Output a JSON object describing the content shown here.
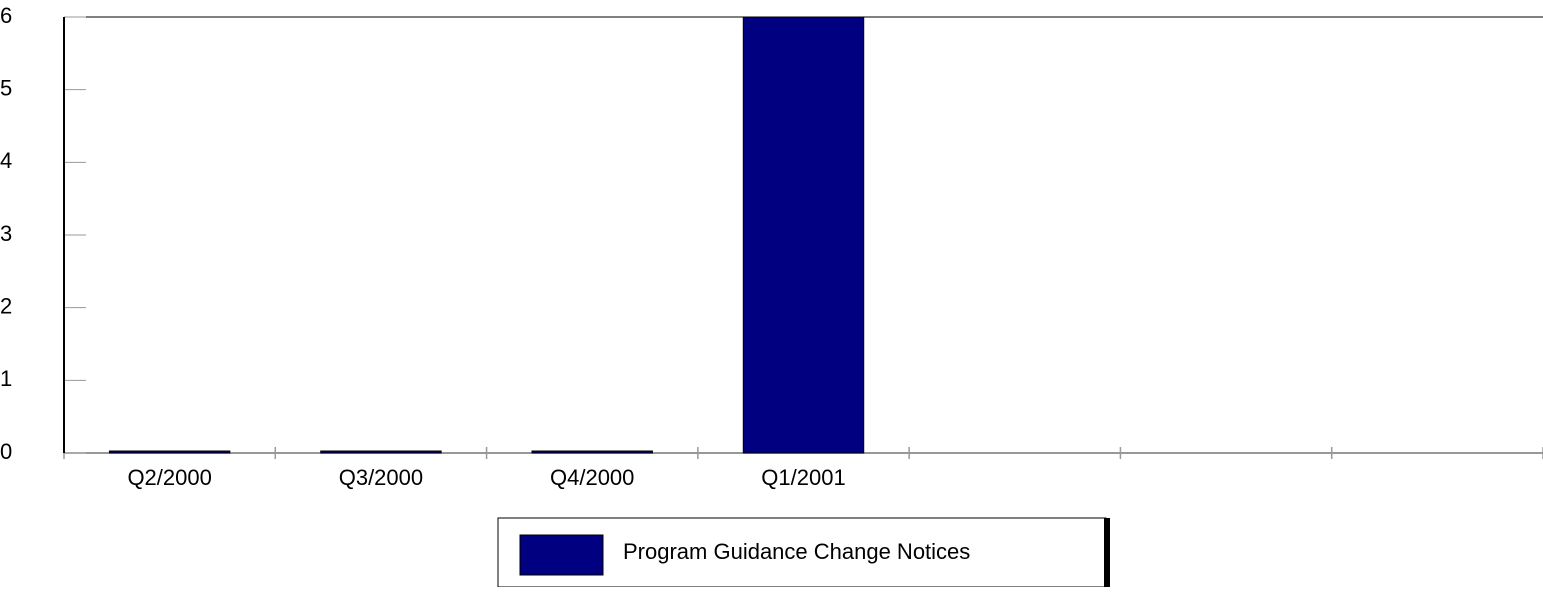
{
  "chart_data": {
    "type": "bar",
    "categories": [
      "Q2/2000",
      "Q3/2000",
      "Q4/2000",
      "Q1/2001",
      null,
      null,
      null
    ],
    "series": [
      {
        "name": "Program Guidance Change Notices",
        "color": "#000080",
        "values": [
          0,
          0,
          0,
          6,
          null,
          null,
          null
        ]
      }
    ],
    "ylim": [
      0,
      6
    ],
    "yticks": [
      0,
      1,
      2,
      3,
      4,
      5,
      6
    ],
    "legend": "bottom"
  }
}
